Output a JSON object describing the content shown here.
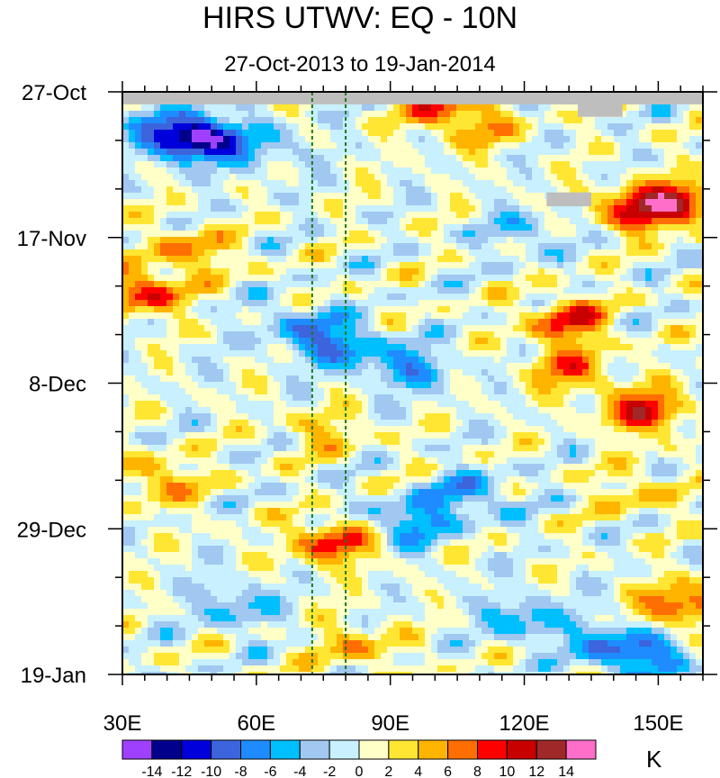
{
  "chart_data": {
    "type": "heatmap",
    "title": "HIRS UTWV: EQ - 10N",
    "subtitle": "27-Oct-2013 to 19-Jan-2014",
    "x_axis": {
      "range": [
        30,
        160
      ],
      "ticks": [
        30,
        60,
        90,
        120,
        150
      ],
      "tick_labels": [
        "30E",
        "60E",
        "90E",
        "120E",
        "150E"
      ]
    },
    "y_axis": {
      "range_days": [
        0,
        84
      ],
      "ticks_days": [
        0,
        21,
        42,
        63,
        84
      ],
      "tick_labels": [
        "27-Oct",
        "17-Nov",
        "8-Dec",
        "29-Dec",
        "19-Jan"
      ]
    },
    "reference_lines_lon": [
      72.5,
      80
    ],
    "colorbar": {
      "unit": "K",
      "levels": [
        -14,
        -12,
        -10,
        -8,
        -6,
        -4,
        -2,
        0,
        2,
        4,
        6,
        8,
        10,
        12,
        14
      ],
      "tick_labels": [
        "-14",
        "-12",
        "-10",
        "-8",
        "-6",
        "-4",
        "-2",
        "0",
        "2",
        "4",
        "6",
        "8",
        "10",
        "12",
        "14"
      ],
      "colors": [
        "#a040ff",
        "#00008c",
        "#0000dc",
        "#3c64dc",
        "#1e8cff",
        "#00bfff",
        "#a0c8f0",
        "#c8f0ff",
        "#ffffc8",
        "#ffe632",
        "#ffb400",
        "#ff6e00",
        "#ff0000",
        "#c80000",
        "#a02828",
        "#ff6ec8"
      ]
    },
    "features": [
      {
        "lon": 48,
        "day": 7,
        "value": -10
      },
      {
        "lon": 42,
        "day": 6,
        "value": -9
      },
      {
        "lon": 35,
        "day": 29,
        "value": 9
      },
      {
        "lon": 100,
        "day": 2,
        "value": 7
      },
      {
        "lon": 145,
        "day": 17,
        "value": 9
      },
      {
        "lon": 155,
        "day": 16,
        "value": 10
      },
      {
        "lon": 130,
        "day": 33,
        "value": 9
      },
      {
        "lon": 147,
        "day": 46,
        "value": 10
      },
      {
        "lon": 62,
        "day": 8,
        "value": -4
      },
      {
        "lon": 80,
        "day": 37,
        "value": -7
      },
      {
        "lon": 70,
        "day": 34,
        "value": -6
      },
      {
        "lon": 95,
        "day": 40,
        "value": -6
      },
      {
        "lon": 108,
        "day": 58,
        "value": -6
      },
      {
        "lon": 95,
        "day": 62,
        "value": -7
      },
      {
        "lon": 140,
        "day": 80,
        "value": -8
      },
      {
        "lon": 120,
        "day": 76,
        "value": -6
      },
      {
        "lon": 77,
        "day": 65,
        "value": 9
      },
      {
        "lon": 82,
        "day": 80,
        "value": 5
      },
      {
        "lon": 155,
        "day": 74,
        "value": 9
      },
      {
        "lon": 38,
        "day": 56,
        "value": 6
      },
      {
        "lon": 45,
        "day": 23,
        "value": 6
      },
      {
        "lon": 130,
        "day": 40,
        "value": 7
      },
      {
        "lon": 145,
        "day": 58,
        "value": 4
      },
      {
        "lon": 110,
        "day": 5,
        "value": 5
      },
      {
        "lon": 75,
        "day": 49,
        "value": 4
      },
      {
        "lon": 150,
        "day": 82,
        "value": -5
      },
      {
        "lon": 55,
        "day": 74,
        "value": -5
      },
      {
        "lon": 120,
        "day": 20,
        "value": -4
      }
    ],
    "missing_data": [
      {
        "lon": [
          30,
          160
        ],
        "day": [
          0,
          1.8
        ]
      },
      {
        "lon": [
          132,
          142
        ],
        "day": [
          0,
          3.6
        ]
      },
      {
        "lon": [
          125,
          135
        ],
        "day": [
          14.5,
          16.5
        ]
      }
    ]
  }
}
